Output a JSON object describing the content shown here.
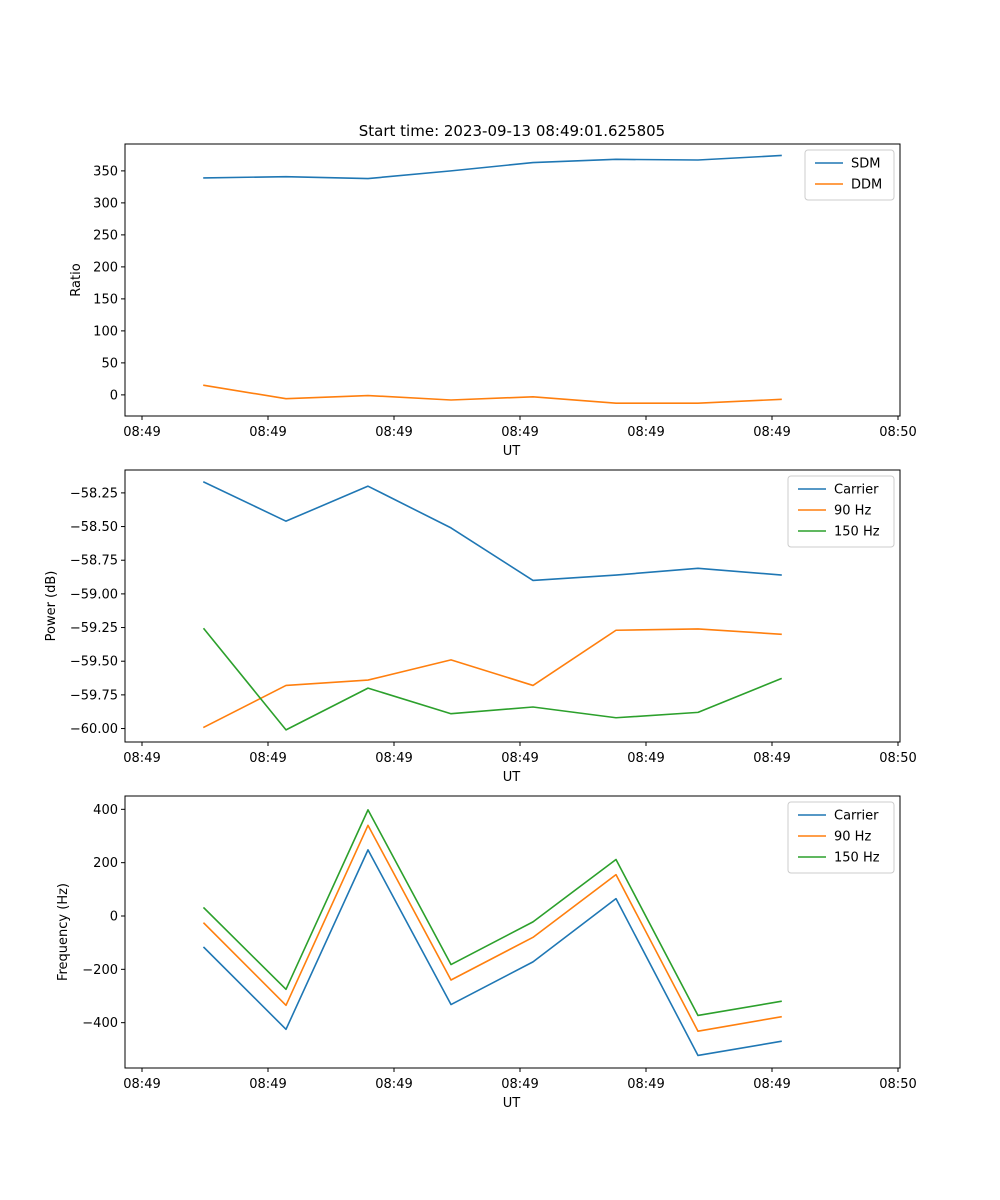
{
  "figure_title": "Start time: 2023-09-13 08:49:01.625805",
  "colors": {
    "c0": "#1f77b4",
    "c1": "#ff7f0e",
    "c2": "#2ca02c"
  },
  "chart_data": [
    {
      "type": "line",
      "xlabel": "UT",
      "ylabel": "Ratio",
      "xtick_labels": [
        "08:49",
        "08:49",
        "08:49",
        "08:49",
        "08:49",
        "08:49",
        "08:50"
      ],
      "ylim": [
        -33,
        392
      ],
      "yticks": [
        0,
        50,
        100,
        150,
        200,
        250,
        300,
        350
      ],
      "ytick_labels": [
        "0",
        "50",
        "100",
        "150",
        "200",
        "250",
        "300",
        "350"
      ],
      "legend": "top-right",
      "series": [
        {
          "name": "SDM",
          "color": "#1f77b4",
          "values": [
            339,
            341,
            338,
            350,
            363,
            368,
            367,
            374
          ]
        },
        {
          "name": "DDM",
          "color": "#ff7f0e",
          "values": [
            15,
            -6,
            -1,
            -8,
            -3,
            -13,
            -13,
            -7
          ]
        }
      ]
    },
    {
      "type": "line",
      "xlabel": "UT",
      "ylabel": "Power (dB)",
      "xtick_labels": [
        "08:49",
        "08:49",
        "08:49",
        "08:49",
        "08:49",
        "08:49",
        "08:50"
      ],
      "ylim": [
        -60.1,
        -58.08
      ],
      "yticks": [
        -60.0,
        -59.75,
        -59.5,
        -59.25,
        -59.0,
        -58.75,
        -58.5,
        -58.25
      ],
      "ytick_labels": [
        "−60.00",
        "−59.75",
        "−59.50",
        "−59.25",
        "−59.00",
        "−58.75",
        "−58.50",
        "−58.25"
      ],
      "legend": "top-right",
      "series": [
        {
          "name": "Carrier",
          "color": "#1f77b4",
          "values": [
            -58.17,
            -58.46,
            -58.2,
            -58.51,
            -58.9,
            -58.86,
            -58.81,
            -58.86
          ]
        },
        {
          "name": "90 Hz",
          "color": "#ff7f0e",
          "values": [
            -59.99,
            -59.68,
            -59.64,
            -59.49,
            -59.68,
            -59.27,
            -59.26,
            -59.3
          ]
        },
        {
          "name": "150 Hz",
          "color": "#2ca02c",
          "values": [
            -59.26,
            -60.01,
            -59.7,
            -59.89,
            -59.84,
            -59.92,
            -59.88,
            -59.63
          ]
        }
      ]
    },
    {
      "type": "line",
      "xlabel": "UT",
      "ylabel": "Frequency (Hz)",
      "xtick_labels": [
        "08:49",
        "08:49",
        "08:49",
        "08:49",
        "08:49",
        "08:49",
        "08:50"
      ],
      "ylim": [
        -570,
        450
      ],
      "yticks": [
        -400,
        -200,
        0,
        200,
        400
      ],
      "ytick_labels": [
        "−400",
        "−200",
        "0",
        "200",
        "400"
      ],
      "legend": "top-right",
      "series": [
        {
          "name": "Carrier",
          "color": "#1f77b4",
          "values": [
            -118,
            -425,
            248,
            -332,
            -172,
            65,
            -523,
            -470
          ]
        },
        {
          "name": "90 Hz",
          "color": "#ff7f0e",
          "values": [
            -27,
            -335,
            340,
            -240,
            -80,
            155,
            -432,
            -378
          ]
        },
        {
          "name": "150 Hz",
          "color": "#2ca02c",
          "values": [
            30,
            -275,
            398,
            -182,
            -22,
            212,
            -373,
            -320
          ]
        }
      ]
    }
  ]
}
